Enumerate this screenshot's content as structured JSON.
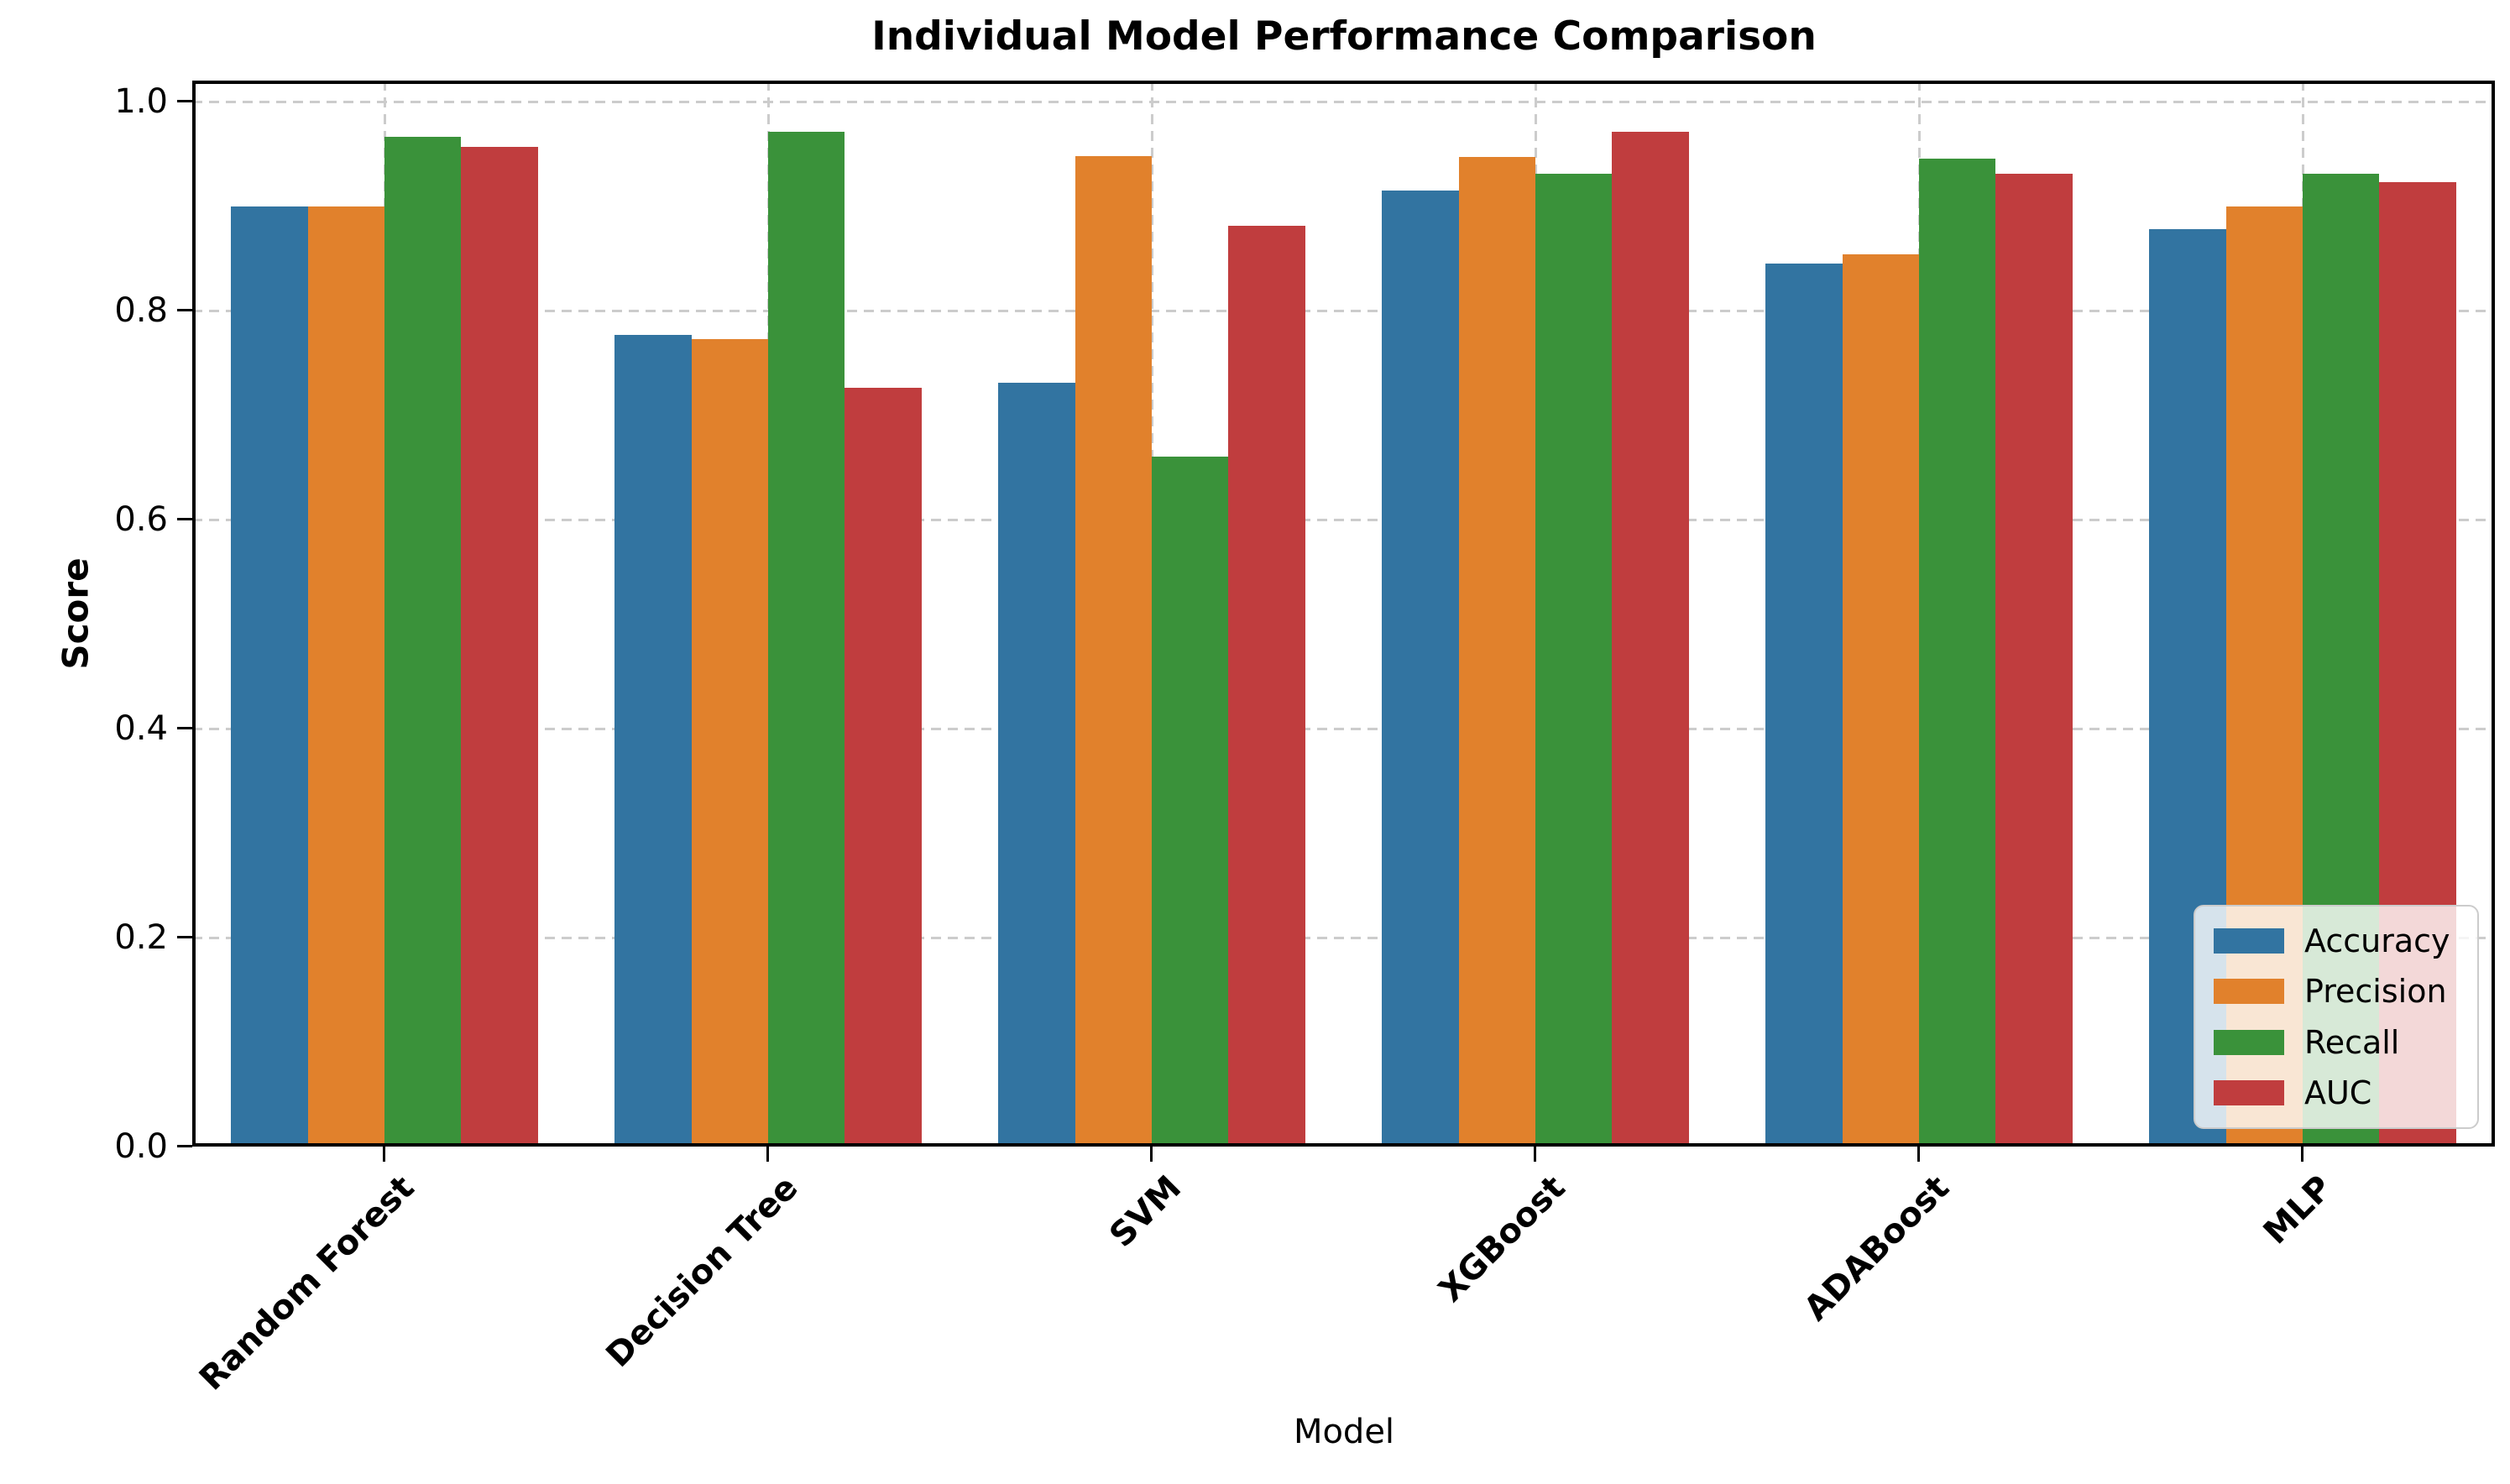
{
  "figure": {
    "background": "#ffffff"
  },
  "chart_data": {
    "type": "bar",
    "title": "Individual Model Performance Comparison",
    "xlabel": "Model",
    "ylabel": "Score",
    "categories": [
      "Random Forest",
      "Decision Tree",
      "SVM",
      "XGBoost",
      "ADABoost",
      "MLP"
    ],
    "series": [
      {
        "name": "Accuracy",
        "color": "#3274a1",
        "values": [
          0.9,
          0.777,
          0.731,
          0.915,
          0.845,
          0.878
        ]
      },
      {
        "name": "Precision",
        "color": "#e1812c",
        "values": [
          0.9,
          0.773,
          0.948,
          0.947,
          0.854,
          0.9
        ]
      },
      {
        "name": "Recall",
        "color": "#3a923a",
        "values": [
          0.966,
          0.971,
          0.66,
          0.931,
          0.945,
          0.931
        ]
      },
      {
        "name": "AUC",
        "color": "#c03d3e",
        "values": [
          0.957,
          0.726,
          0.881,
          0.971,
          0.931,
          0.923
        ]
      }
    ],
    "ylim": [
      0,
      1.02
    ],
    "yticks": [
      "0.0",
      "0.2",
      "0.4",
      "0.6",
      "0.8",
      "1.0"
    ],
    "grid": {
      "style": "dashed",
      "color": "#cccccc",
      "horizontal": true,
      "vertical": true
    },
    "legend": {
      "position": "lower right",
      "labels": [
        "Accuracy",
        "Precision",
        "Recall",
        "AUC"
      ]
    }
  }
}
